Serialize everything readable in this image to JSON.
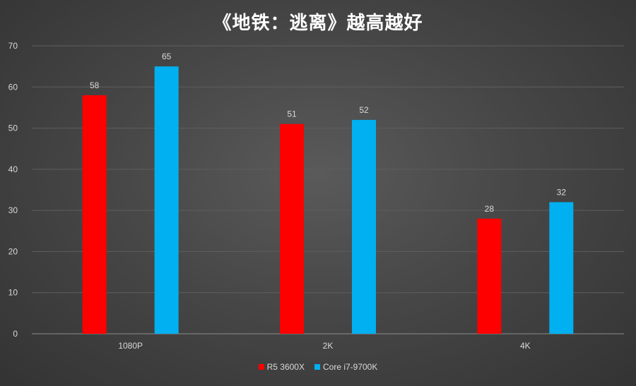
{
  "chart_data": {
    "type": "bar",
    "title": "《地铁：逃离》越高越好",
    "categories": [
      "1080P",
      "2K",
      "4K"
    ],
    "series": [
      {
        "name": "R5 3600X",
        "values": [
          58,
          51,
          28
        ],
        "color": "#ff0000"
      },
      {
        "name": "Core i7-9700K",
        "values": [
          65,
          52,
          32
        ],
        "color": "#00b0f0"
      }
    ],
    "ylim": [
      0,
      70
    ],
    "yticks": [
      0,
      10,
      20,
      30,
      40,
      50,
      60,
      70
    ],
    "grid": true,
    "legend_position": "bottom"
  }
}
